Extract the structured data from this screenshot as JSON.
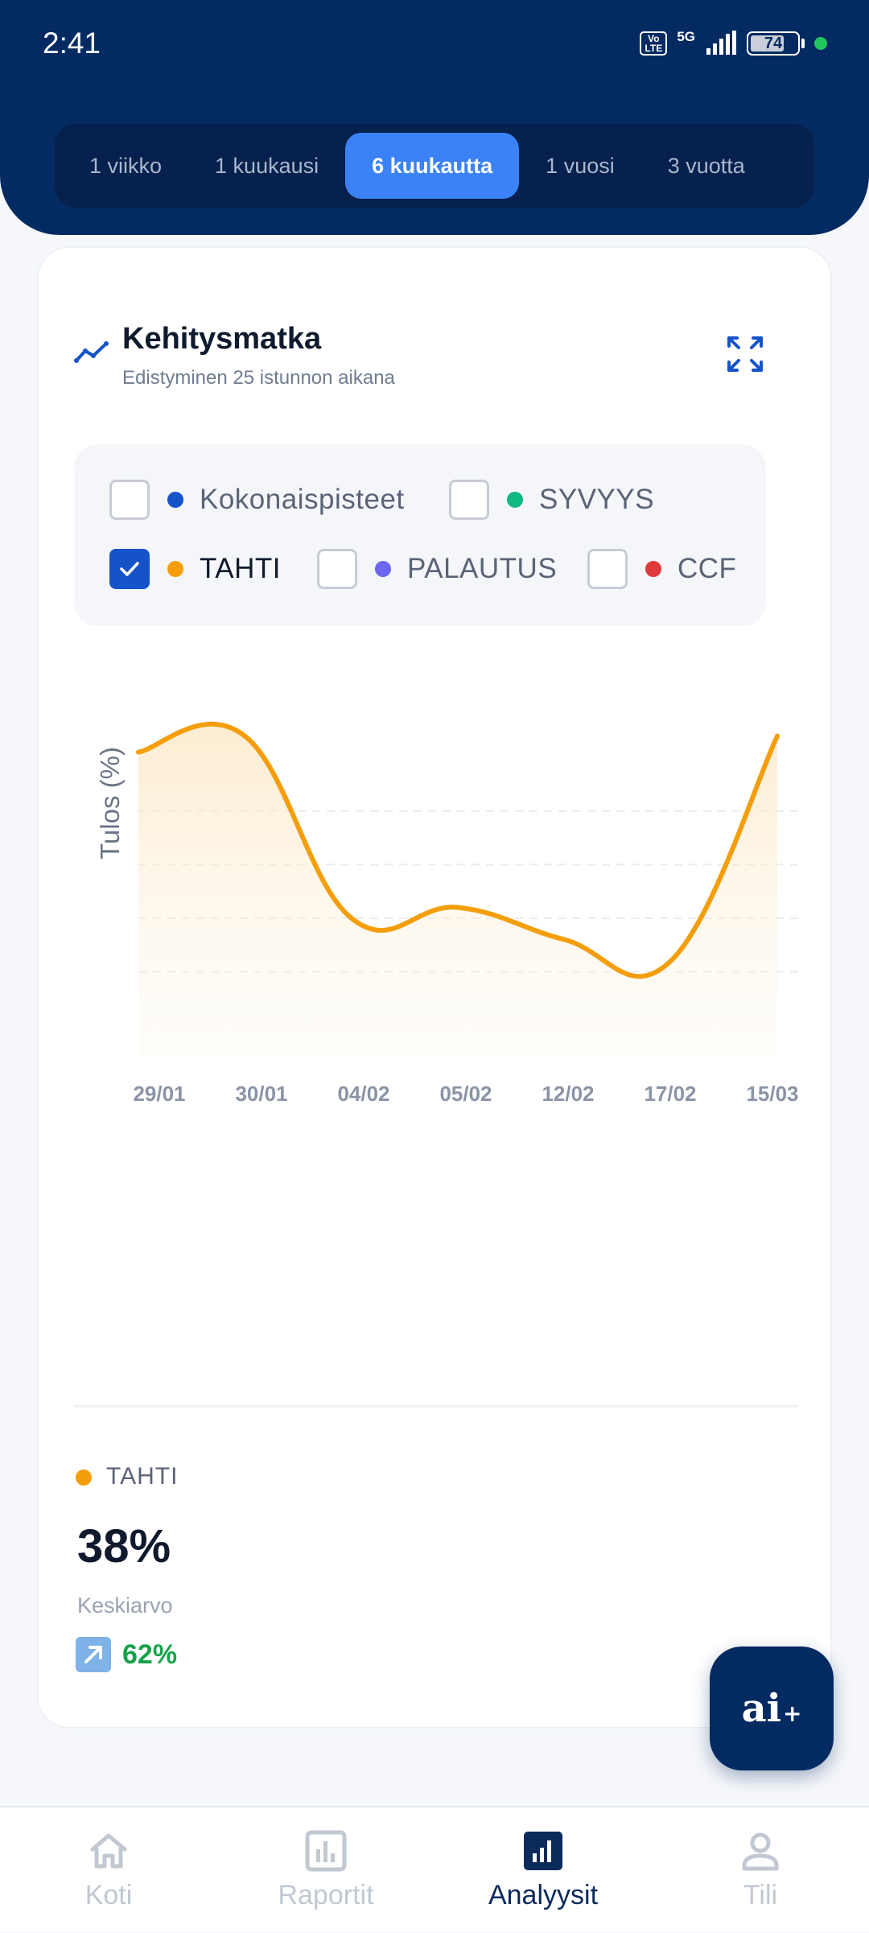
{
  "status_bar": {
    "time": "2:41",
    "volte_top": "Vo",
    "volte_bottom": "LTE",
    "network": "5G",
    "battery": "74"
  },
  "range_tabs": [
    {
      "label": "1 viikko",
      "active": false
    },
    {
      "label": "1 kuukausi",
      "active": false
    },
    {
      "label": "6 kuukautta",
      "active": true
    },
    {
      "label": "1 vuosi",
      "active": false
    },
    {
      "label": "3 vuotta",
      "active": false
    }
  ],
  "card": {
    "title": "Kehitysmatka",
    "subtitle": "Edistyminen 25 istunnon aikana",
    "icons": {
      "title": "trend-line-icon",
      "expand": "expand-icon"
    }
  },
  "legend": [
    {
      "label": "Kokonaispisteet",
      "color": "#1553c9",
      "checked": false
    },
    {
      "label": "SYVYYS",
      "color": "#10b981",
      "checked": false
    },
    {
      "label": "TAHTI",
      "color": "#f59e0b",
      "checked": true
    },
    {
      "label": "PALAUTUS",
      "color": "#6d67f0",
      "checked": false
    },
    {
      "label": "CCF",
      "color": "#e03a3a",
      "checked": false
    }
  ],
  "chart_data": {
    "type": "area",
    "title": "",
    "xlabel": "",
    "ylabel": "Tulos (%)",
    "categories": [
      "29/01",
      "30/01",
      "04/02",
      "05/02",
      "12/02",
      "17/02",
      "15/03"
    ],
    "grid": true,
    "series": [
      {
        "name": "TAHTI",
        "color": "#f59e0b",
        "values": [
          61,
          64,
          30,
          32,
          26,
          22,
          64
        ]
      }
    ],
    "ylim": [
      10,
      68
    ]
  },
  "summary": {
    "name": "TAHTI",
    "value": "38%",
    "caption": "Keskiarvo",
    "change": "62%",
    "change_icon": "arrow-up-right-icon"
  },
  "ai_button": {
    "label": "ai",
    "suffix": "+"
  },
  "bottom_nav": [
    {
      "label": "Koti",
      "icon": "home-icon",
      "active": false
    },
    {
      "label": "Raportit",
      "icon": "chart-report-icon",
      "active": false
    },
    {
      "label": "Analyysit",
      "icon": "analytics-icon",
      "active": true
    },
    {
      "label": "Tili",
      "icon": "user-icon",
      "active": false
    }
  ]
}
